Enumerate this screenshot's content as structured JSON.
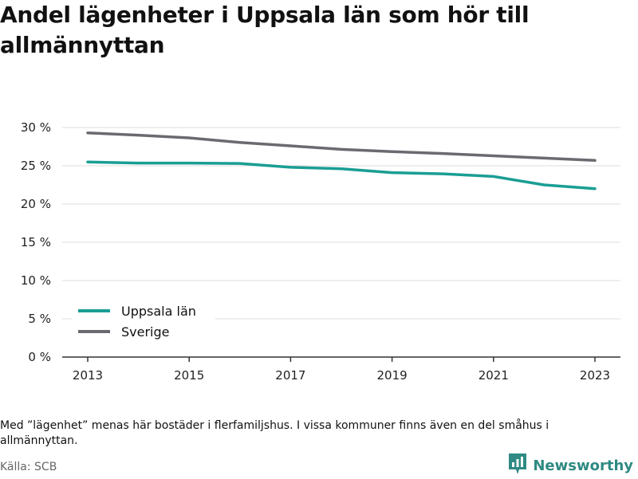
{
  "title": "Andel lägenheter i Uppsala län som hör till allmännyttan",
  "note": "Med ”lägenhet” menas här bostäder i flerfamiljshus. I vissa kommuner finns även en del småhus i allmännyttan.",
  "source": "Källa: SCB",
  "brand": {
    "name": "Newsworthy",
    "icon": "newsworthy-logo-icon",
    "color": "#2e8a83"
  },
  "chart_data": {
    "type": "line",
    "title": "Andel lägenheter i Uppsala län som hör till allmännyttan",
    "x": [
      2013,
      2014,
      2015,
      2016,
      2017,
      2018,
      2019,
      2020,
      2021,
      2022,
      2023
    ],
    "series": [
      {
        "name": "Uppsala län",
        "color": "#1a9e94",
        "values": [
          25.5,
          25.35,
          25.35,
          25.3,
          24.8,
          24.6,
          24.1,
          23.95,
          23.6,
          22.5,
          22.0
        ]
      },
      {
        "name": "Sverige",
        "color": "#6b6a70",
        "values": [
          29.3,
          29.0,
          28.65,
          28.05,
          27.6,
          27.15,
          26.85,
          26.6,
          26.3,
          26.0,
          25.7
        ]
      }
    ],
    "ylim": [
      0,
      30
    ],
    "yticks": [
      "0 %",
      "5 %",
      "10 %",
      "15 %",
      "20 %",
      "25 %",
      "30 %"
    ],
    "xticks": [
      "2013",
      "2015",
      "2017",
      "2019",
      "2021",
      "2023"
    ],
    "xlabel": "",
    "ylabel": "",
    "grid": "horizontal",
    "legend": "bottom-left"
  }
}
